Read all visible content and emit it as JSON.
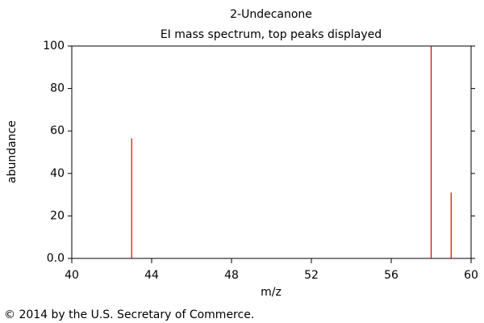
{
  "chart_data": {
    "type": "stem",
    "title": "2-Undecanone",
    "subtitle": "EI mass spectrum, top peaks displayed",
    "x_label": "m/z",
    "y_label": "abundance",
    "footer": "© 2014 by the U.S. Secretary of Commerce.",
    "x": [
      43,
      58,
      59
    ],
    "values": [
      56.5,
      100,
      31
    ],
    "color": "#e00000",
    "xlim": [
      40,
      60
    ],
    "xticks": [
      40,
      44,
      48,
      52,
      56,
      60
    ],
    "ylim": [
      0,
      100
    ],
    "yticks": [
      {
        "value": 0,
        "label": "0.0"
      },
      20,
      40,
      60,
      80,
      100
    ],
    "grid": false
  }
}
